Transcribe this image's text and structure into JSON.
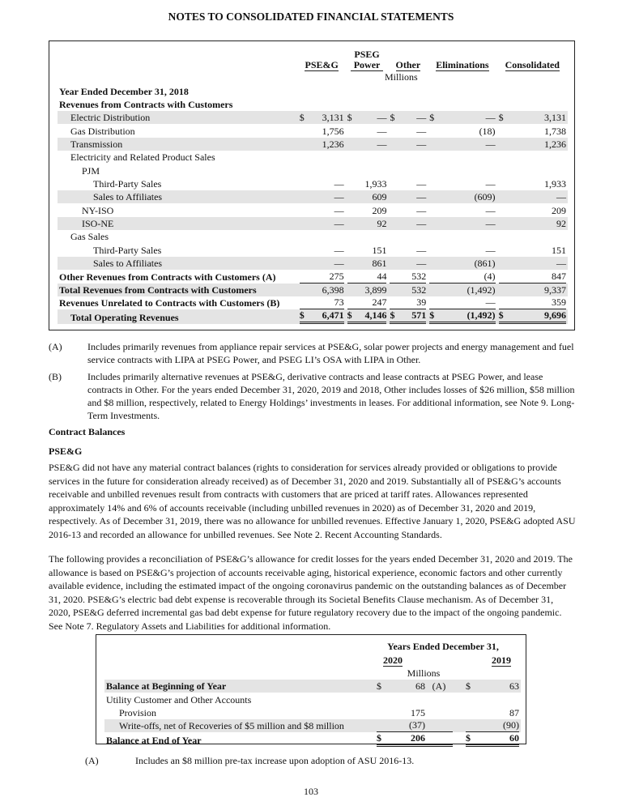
{
  "header": {
    "title": "NOTES TO CONSOLIDATED FINANCIAL STATEMENTS"
  },
  "table1": {
    "columns": [
      "PSE&G",
      "PSEG Power",
      "Other",
      "Eliminations",
      "Consolidated"
    ],
    "units": "Millions",
    "rows": [
      {
        "label": "Year Ended December 31, 2018",
        "level": 0,
        "bold": true
      },
      {
        "label": "Revenues from Contracts with Customers",
        "level": 0,
        "bold": true
      },
      {
        "label": "Electric Distribution",
        "level": 1,
        "currency": "$",
        "values": [
          "3,131",
          "—",
          "—",
          "—",
          "3,131"
        ]
      },
      {
        "label": "Gas Distribution",
        "level": 1,
        "values": [
          "1,756",
          "—",
          "—",
          "(18)",
          "1,738"
        ]
      },
      {
        "label": "Transmission",
        "level": 1,
        "values": [
          "1,236",
          "—",
          "—",
          "—",
          "1,236"
        ]
      },
      {
        "label": "Electricity and Related Product Sales",
        "level": 1
      },
      {
        "label": "PJM",
        "level": 2
      },
      {
        "label": "Third-Party Sales",
        "level": 3,
        "values": [
          "—",
          "1,933",
          "—",
          "—",
          "1,933"
        ]
      },
      {
        "label": "Sales to Affiliates",
        "level": 3,
        "values": [
          "—",
          "609",
          "—",
          "(609)",
          "—"
        ]
      },
      {
        "label": "NY-ISO",
        "level": 2,
        "values": [
          "—",
          "209",
          "—",
          "—",
          "209"
        ]
      },
      {
        "label": "ISO-NE",
        "level": 2,
        "values": [
          "—",
          "92",
          "—",
          "—",
          "92"
        ]
      },
      {
        "label": "Gas Sales",
        "level": 1
      },
      {
        "label": "Third-Party Sales",
        "level": 3,
        "values": [
          "—",
          "151",
          "—",
          "—",
          "151"
        ]
      },
      {
        "label": "Sales to Affiliates",
        "level": 3,
        "values": [
          "—",
          "861",
          "—",
          "(861)",
          "—"
        ]
      },
      {
        "label": "Other Revenues from Contracts with Customers (A)",
        "level": 0,
        "bold": true,
        "rule": "single",
        "values": [
          "275",
          "44",
          "532",
          "(4)",
          "847"
        ]
      },
      {
        "label": "Total Revenues from Contracts with Customers",
        "level": 0,
        "bold": true,
        "values": [
          "6,398",
          "3,899",
          "532",
          "(1,492)",
          "9,337"
        ]
      },
      {
        "label": "Revenues Unrelated to Contracts with Customers (B)",
        "level": 0,
        "bold": true,
        "rule": "single",
        "values": [
          "73",
          "247",
          "39",
          "—",
          "359"
        ]
      },
      {
        "label": "Total Operating Revenues",
        "level": 1,
        "bold": true,
        "currency": "$",
        "rule": "double",
        "values": [
          "6,471",
          "4,146",
          "571",
          "(1,492)",
          "9,696"
        ]
      }
    ]
  },
  "footnotes1": [
    {
      "mark": "(A)",
      "text": "Includes primarily revenues from appliance repair services at PSE&G, solar power projects and energy management and fuel service contracts with LIPA at PSEG Power, and PSEG LI’s OSA with LIPA in Other."
    },
    {
      "mark": "(B)",
      "text": "Includes primarily alternative revenues at PSE&G, derivative contracts and lease contracts at PSEG Power, and lease contracts in Other. For the years ended December 31, 2020, 2019 and 2018, Other includes losses of $26 million, $58 million and $8 million, respectively, related to Energy Holdings’ investments in leases. For additional information, see Note 9. Long-Term Investments."
    }
  ],
  "section": {
    "heading": "Contract Balances",
    "subheading": "PSE&G"
  },
  "paragraphs": [
    "PSE&G did not have any material contract balances (rights to consideration for services already provided or obligations to provide services in the future for consideration already received) as of December 31, 2020 and 2019. Substantially all of PSE&G’s accounts receivable and unbilled revenues result from contracts with customers that are priced at tariff rates. Allowances represented approximately 14% and 6% of accounts receivable (including unbilled revenues in 2020) as of December 31, 2020 and 2019, respectively. As of December 31, 2019, there was no allowance for unbilled revenues. Effective January 1, 2020, PSE&G adopted ASU 2016-13 and recorded an allowance for unbilled revenues. See Note 2. Recent Accounting Standards.",
    "The following provides a reconciliation of PSE&G’s allowance for credit losses for the years ended December 31, 2020 and 2019. The allowance is based on PSE&G’s projection of accounts receivable aging, historical experience, economic factors and other currently available evidence, including the estimated impact of the ongoing coronavirus pandemic on the outstanding balances as of December 31, 2020. PSE&G’s electric bad debt expense is recoverable through its Societal Benefits Clause mechanism. As of December 31, 2020, PSE&G deferred incremental gas bad debt expense for future regulatory recovery due to the impact of the ongoing pandemic. See Note 7. Regulatory Assets and Liabilities for additional information."
  ],
  "table2": {
    "header": "Years Ended December 31,",
    "columns": [
      "2020",
      "2019"
    ],
    "units": "Millions",
    "rows": [
      {
        "label": "Balance at Beginning of Year",
        "bold": true,
        "level": 0,
        "currency": "$",
        "values": [
          "68",
          "63"
        ],
        "note": "(A)"
      },
      {
        "label": "Utility Customer and Other Accounts",
        "level": 0
      },
      {
        "label": "Provision",
        "level": 1,
        "values": [
          "175",
          "87"
        ]
      },
      {
        "label": "Write-offs, net of Recoveries of $5 million and $8 million",
        "level": 1,
        "rule": "single",
        "values": [
          "(37)",
          "(90)"
        ]
      },
      {
        "label": "Balance at End of Year",
        "bold": true,
        "level": 0,
        "currency": "$",
        "rule": "double",
        "values": [
          "206",
          "60"
        ]
      }
    ]
  },
  "footnotes2": [
    {
      "mark": "(A)",
      "text": "Includes an $8 million pre-tax increase upon adoption of ASU 2016-13."
    }
  ],
  "page_number": "103"
}
